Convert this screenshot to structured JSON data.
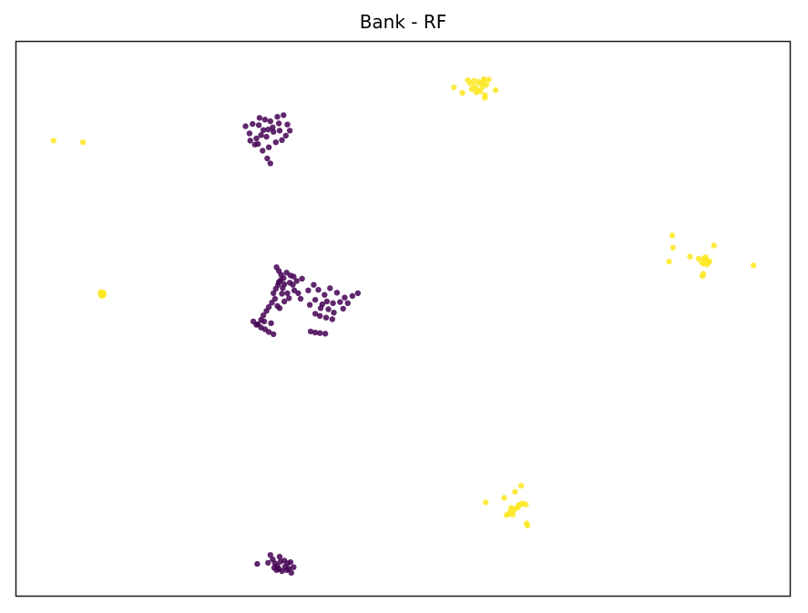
{
  "chart_data": {
    "type": "scatter",
    "title": "Bank - RF",
    "xlabel": "",
    "ylabel": "",
    "xlim": [
      0,
      100
    ],
    "ylim": [
      0,
      100
    ],
    "grid": false,
    "axis_ticks": false,
    "series": [
      {
        "color": "#440154",
        "points": [
          [
            29.6,
            84.8
          ],
          [
            30.1,
            83.5
          ],
          [
            30.5,
            85.2
          ],
          [
            31.0,
            82.6
          ],
          [
            31.4,
            86.3
          ],
          [
            31.9,
            84.1
          ],
          [
            32.3,
            82.9
          ],
          [
            32.8,
            85.7
          ],
          [
            33.2,
            83.8
          ],
          [
            33.7,
            86.5
          ],
          [
            34.0,
            84.0
          ],
          [
            34.3,
            82.3
          ],
          [
            33.5,
            81.9
          ],
          [
            32.6,
            81.0
          ],
          [
            31.8,
            80.4
          ],
          [
            32.4,
            79.0
          ],
          [
            32.8,
            78.1
          ],
          [
            31.2,
            81.6
          ],
          [
            30.2,
            82.2
          ],
          [
            34.5,
            86.8
          ],
          [
            35.0,
            85.1
          ],
          [
            35.3,
            84.0
          ],
          [
            34.8,
            83.1
          ],
          [
            33.1,
            84.6
          ],
          [
            31.6,
            83.2
          ],
          [
            30.8,
            81.5
          ],
          [
            32.1,
            86.0
          ],
          [
            33.9,
            85.3
          ],
          [
            31.3,
            85.0
          ],
          [
            32.5,
            84.2
          ],
          [
            33.6,
            59.4
          ],
          [
            33.9,
            58.7
          ],
          [
            34.2,
            58.0
          ],
          [
            34.5,
            57.4
          ],
          [
            34.9,
            58.4
          ],
          [
            35.4,
            57.9
          ],
          [
            35.8,
            57.7
          ],
          [
            36.2,
            56.9
          ],
          [
            34.1,
            57.0
          ],
          [
            33.8,
            56.2
          ],
          [
            33.5,
            55.5
          ],
          [
            33.2,
            54.7
          ],
          [
            34.6,
            56.3
          ],
          [
            35.3,
            56.6
          ],
          [
            35.7,
            56.2
          ],
          [
            35.0,
            54.7
          ],
          [
            34.3,
            54.6
          ],
          [
            33.4,
            53.7
          ],
          [
            33.0,
            53.0
          ],
          [
            32.6,
            52.2
          ],
          [
            32.3,
            51.5
          ],
          [
            31.9,
            50.7
          ],
          [
            31.6,
            49.9
          ],
          [
            31.2,
            49.1
          ],
          [
            32.0,
            49.6
          ],
          [
            32.9,
            49.3
          ],
          [
            34.0,
            52.0
          ],
          [
            35.2,
            53.8
          ],
          [
            36.4,
            54.7
          ],
          [
            37.7,
            55.2
          ],
          [
            38.4,
            56.2
          ],
          [
            39.0,
            55.3
          ],
          [
            39.8,
            54.4
          ],
          [
            40.5,
            55.6
          ],
          [
            41.4,
            54.8
          ],
          [
            40.1,
            53.2
          ],
          [
            39.3,
            52.0
          ],
          [
            38.6,
            51.0
          ],
          [
            37.9,
            52.6
          ],
          [
            38.6,
            53.5
          ],
          [
            39.5,
            52.7
          ],
          [
            40.3,
            51.8
          ],
          [
            41.0,
            51.2
          ],
          [
            40.9,
            52.9
          ],
          [
            41.8,
            53.1
          ],
          [
            42.4,
            53.9
          ],
          [
            40.8,
            50.0
          ],
          [
            40.0,
            50.3
          ],
          [
            39.2,
            50.6
          ],
          [
            42.2,
            51.9
          ],
          [
            42.8,
            52.9
          ],
          [
            43.4,
            54.2
          ],
          [
            44.1,
            54.7
          ],
          [
            38.0,
            47.8
          ],
          [
            38.6,
            47.6
          ],
          [
            39.2,
            47.5
          ],
          [
            39.9,
            47.4
          ],
          [
            33.2,
            47.3
          ],
          [
            32.6,
            47.7
          ],
          [
            32.1,
            48.2
          ],
          [
            31.6,
            48.5
          ],
          [
            31.0,
            49.0
          ],
          [
            30.6,
            49.6
          ],
          [
            33.9,
            56.7
          ],
          [
            36.9,
            57.3
          ],
          [
            34.6,
            53.2
          ],
          [
            33.7,
            52.4
          ],
          [
            34.4,
            55.6
          ],
          [
            35.9,
            55.2
          ],
          [
            36.7,
            53.7
          ],
          [
            32.8,
            7.5
          ],
          [
            33.1,
            6.7
          ],
          [
            33.4,
            6.0
          ],
          [
            33.7,
            5.5
          ],
          [
            34.1,
            6.3
          ],
          [
            34.6,
            6.5
          ],
          [
            35.0,
            6.0
          ],
          [
            35.4,
            6.2
          ],
          [
            35.8,
            5.3
          ],
          [
            33.9,
            5.0
          ],
          [
            34.3,
            4.6
          ],
          [
            34.9,
            4.8
          ],
          [
            35.5,
            4.3
          ],
          [
            31.1,
            5.9
          ],
          [
            32.5,
            6.1
          ],
          [
            34.7,
            5.4
          ],
          [
            33.3,
            5.2
          ],
          [
            34.0,
            7.2
          ],
          [
            33.6,
            4.8
          ],
          [
            35.2,
            5.0
          ]
        ]
      },
      {
        "color": "#fde725",
        "points": [
          [
            4.8,
            82.2
          ],
          [
            8.6,
            81.9
          ],
          [
            10.9,
            54.6
          ],
          [
            10.9,
            54.9
          ],
          [
            11.0,
            54.5
          ],
          [
            11.2,
            54.8
          ],
          [
            11.1,
            54.4
          ],
          [
            11.3,
            54.6
          ],
          [
            11.0,
            54.2
          ],
          [
            11.2,
            54.3
          ],
          [
            58.3,
            93.1
          ],
          [
            58.8,
            91.5
          ],
          [
            59.2,
            92.0
          ],
          [
            59.5,
            91.4
          ],
          [
            60.0,
            92.5
          ],
          [
            60.4,
            93.3
          ],
          [
            59.7,
            92.8
          ],
          [
            59.1,
            93.0
          ],
          [
            60.2,
            91.9
          ],
          [
            60.7,
            92.3
          ],
          [
            61.0,
            93.2
          ],
          [
            59.4,
            90.9
          ],
          [
            58.6,
            92.6
          ],
          [
            60.3,
            92.9
          ],
          [
            59.9,
            91.1
          ],
          [
            60.5,
            89.9
          ],
          [
            60.5,
            90.4
          ],
          [
            56.5,
            91.8
          ],
          [
            57.6,
            90.8
          ],
          [
            61.9,
            91.3
          ],
          [
            84.7,
            65.1
          ],
          [
            84.8,
            62.9
          ],
          [
            84.3,
            60.4
          ],
          [
            87.0,
            61.3
          ],
          [
            88.1,
            60.9
          ],
          [
            88.5,
            60.3
          ],
          [
            88.8,
            60.0
          ],
          [
            89.0,
            60.8
          ],
          [
            89.3,
            60.5
          ],
          [
            88.7,
            60.9
          ],
          [
            89.0,
            61.2
          ],
          [
            89.5,
            60.4
          ],
          [
            89.2,
            59.9
          ],
          [
            88.6,
            57.8
          ],
          [
            88.7,
            58.2
          ],
          [
            90.1,
            63.3
          ],
          [
            95.2,
            59.7
          ],
          [
            64.4,
            18.9
          ],
          [
            65.2,
            20.0
          ],
          [
            65.1,
            16.6
          ],
          [
            64.8,
            16.2
          ],
          [
            64.5,
            15.9
          ],
          [
            64.2,
            15.6
          ],
          [
            63.8,
            15.3
          ],
          [
            63.6,
            14.9
          ],
          [
            63.3,
            14.7
          ],
          [
            64.9,
            16.5
          ],
          [
            65.4,
            16.8
          ],
          [
            65.8,
            16.6
          ],
          [
            63.9,
            16.0
          ],
          [
            64.1,
            14.8
          ],
          [
            65.9,
            13.2
          ],
          [
            66.0,
            12.8
          ],
          [
            60.6,
            17.0
          ],
          [
            63.0,
            17.8
          ]
        ]
      }
    ]
  }
}
